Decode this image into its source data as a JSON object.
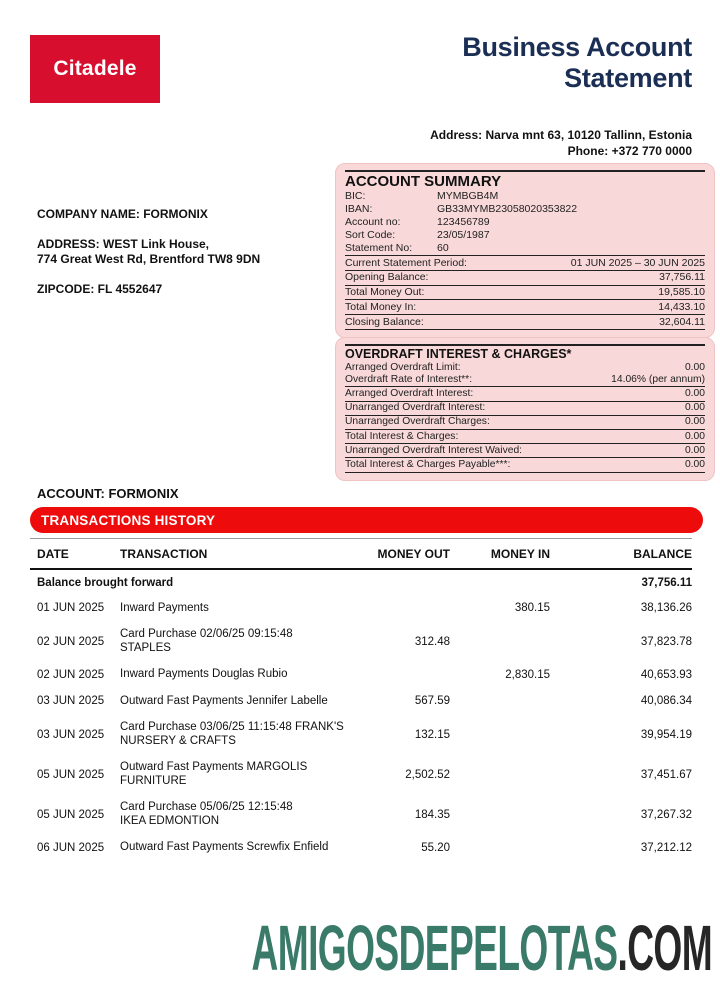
{
  "brand": {
    "logo_text": "Citadele"
  },
  "header": {
    "title_line1": "Business Account",
    "title_line2": "Statement",
    "address": "Address: Narva mnt 63, 10120 Tallinn, Estonia",
    "phone": "Phone: +372 770 0000"
  },
  "company": {
    "name": "COMPANY NAME: FORMONIX",
    "address_line1": "ADDRESS: WEST Link House,",
    "address_line2": "774 Great West Rd, Brentford TW8 9DN",
    "zipcode": "ZIPCODE: FL 4552647"
  },
  "account_summary": {
    "title": "ACCOUNT SUMMARY",
    "details": [
      {
        "label": "BIC:",
        "value": "MYMBGB4M"
      },
      {
        "label": "IBAN:",
        "value": "GB33MYMB23058020353822"
      },
      {
        "label": "Account no:",
        "value": "123456789"
      },
      {
        "label": "Sort Code:",
        "value": "23/05/1987"
      },
      {
        "label": "Statement No:",
        "value": "60"
      }
    ],
    "rows": [
      {
        "label": "Current Statement Period:",
        "value": "01 JUN 2025 – 30 JUN 2025"
      },
      {
        "label": "Opening Balance:",
        "value": "37,756.11"
      },
      {
        "label": "Total Money Out:",
        "value": "19,585.10"
      },
      {
        "label": "Total Money In:",
        "value": "14,433.10"
      },
      {
        "label": "Closing Balance:",
        "value": "32,604.11"
      }
    ]
  },
  "overdraft": {
    "title": "OVERDRAFT INTEREST & CHARGES*",
    "details": [
      {
        "label": "Arranged Overdraft Limit:",
        "value": "0.00"
      },
      {
        "label": "Overdraft Rate of Interest**:",
        "value": "14.06% (per annum)"
      }
    ],
    "rows": [
      {
        "label": "Arranged Overdraft Interest:",
        "value": "0.00"
      },
      {
        "label": "Unarranged Overdraft Interest:",
        "value": "0.00"
      },
      {
        "label": "Unarranged Overdraft Charges:",
        "value": "0.00"
      },
      {
        "label": "Total Interest & Charges:",
        "value": "0.00"
      },
      {
        "label": "Unarranged Overdraft Interest Waived:",
        "value": "0.00"
      },
      {
        "label": "Total Interest & Charges Payable***:",
        "value": "0.00"
      }
    ]
  },
  "transactions": {
    "account_heading": "ACCOUNT: FORMONIX",
    "banner": "TRANSACTIONS HISTORY",
    "columns": [
      "DATE",
      "TRANSACTION",
      "MONEY OUT",
      "MONEY IN",
      "BALANCE"
    ],
    "opening_row": {
      "label": "Balance brought forward",
      "balance": "37,756.11"
    },
    "rows": [
      {
        "date": "01 JUN 2025",
        "description": "Inward Payments",
        "money_out": "",
        "money_in": "380.15",
        "balance": "38,136.26"
      },
      {
        "date": "02 JUN 2025",
        "description": "Card Purchase 02/06/25 09:15:48\nSTAPLES",
        "money_out": "312.48",
        "money_in": "",
        "balance": "37,823.78"
      },
      {
        "date": "02 JUN 2025",
        "description": "Inward Payments Douglas Rubio",
        "money_out": "",
        "money_in": "2,830.15",
        "balance": "40,653.93"
      },
      {
        "date": "03 JUN 2025",
        "description": "Outward Fast Payments Jennifer Labelle",
        "money_out": "567.59",
        "money_in": "",
        "balance": "40,086.34"
      },
      {
        "date": "03 JUN 2025",
        "description": "Card Purchase 03/06/25 11:15:48 FRANK'S\nNURSERY & CRAFTS",
        "money_out": "132.15",
        "money_in": "",
        "balance": "39,954.19"
      },
      {
        "date": "05 JUN 2025",
        "description": "Outward Fast Payments MARGOLIS\nFURNITURE",
        "money_out": "2,502.52",
        "money_in": "",
        "balance": "37,451.67"
      },
      {
        "date": "05 JUN 2025",
        "description": "Card Purchase 05/06/25 12:15:48\nIKEA EDMONTION",
        "money_out": "184.35",
        "money_in": "",
        "balance": "37,267.32"
      },
      {
        "date": "06 JUN 2025",
        "description": "Outward Fast Payments Screwfix Enfield",
        "money_out": "55.20",
        "money_in": "",
        "balance": "37,212.12"
      }
    ]
  },
  "footer": {
    "watermark_name": "AMIGOSDEPELOTAS",
    "watermark_tld": ".COM"
  },
  "colors": {
    "brand_red": "#d80e2f",
    "banner_red": "#ee0b0b",
    "panel_pink": "#f8d8d8",
    "title_navy": "#1b2f55",
    "watermark_teal": "#3a7a68",
    "watermark_dark": "#262626"
  }
}
